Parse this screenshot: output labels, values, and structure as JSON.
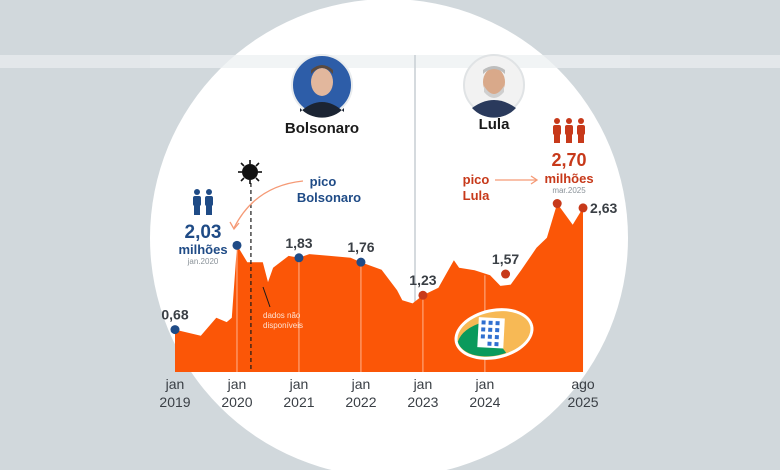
{
  "chart_data": {
    "type": "area",
    "title": "",
    "xlabel": "",
    "ylabel": "milhões",
    "ylim": [
      0,
      2.8
    ],
    "x_start": "2019-01",
    "points": [
      {
        "month": 0,
        "value": 0.68
      },
      {
        "month": 5,
        "value": 0.58
      },
      {
        "month": 8,
        "value": 0.87
      },
      {
        "month": 10,
        "value": 0.8
      },
      {
        "month": 11,
        "value": 0.87
      },
      {
        "month": 12,
        "value": 2.03
      },
      {
        "month": 14,
        "value": 1.76
      },
      {
        "month": 17,
        "value": 1.76
      },
      {
        "month": 18,
        "value": 1.44
      },
      {
        "month": 19,
        "value": 1.67
      },
      {
        "month": 22,
        "value": 1.86
      },
      {
        "month": 24,
        "value": 1.83
      },
      {
        "month": 26,
        "value": 1.89
      },
      {
        "month": 30,
        "value": 1.86
      },
      {
        "month": 34,
        "value": 1.83
      },
      {
        "month": 36,
        "value": 1.76
      },
      {
        "month": 40,
        "value": 1.64
      },
      {
        "month": 43,
        "value": 1.31
      },
      {
        "month": 44,
        "value": 1.15
      },
      {
        "month": 46,
        "value": 1.1
      },
      {
        "month": 48,
        "value": 1.23
      },
      {
        "month": 51,
        "value": 1.35
      },
      {
        "month": 54,
        "value": 1.79
      },
      {
        "month": 55,
        "value": 1.67
      },
      {
        "month": 58,
        "value": 1.63
      },
      {
        "month": 61,
        "value": 1.55
      },
      {
        "month": 63,
        "value": 1.38
      },
      {
        "month": 65,
        "value": 1.4
      },
      {
        "month": 67,
        "value": 1.63
      },
      {
        "month": 70,
        "value": 1.99
      },
      {
        "month": 72,
        "value": 2.15
      },
      {
        "month": 74,
        "value": 2.7
      },
      {
        "month": 77,
        "value": 2.36
      },
      {
        "month": 79,
        "value": 2.63
      }
    ],
    "markers": [
      {
        "month": 0,
        "value": 0.68,
        "label": "0,68",
        "color": "#1f4b86"
      },
      {
        "month": 12,
        "value": 2.03,
        "label": "",
        "color": "#1f4b86"
      },
      {
        "month": 24,
        "value": 1.83,
        "label": "1,83",
        "color": "#1f4b86"
      },
      {
        "month": 36,
        "value": 1.76,
        "label": "1,76",
        "color": "#1f4b86"
      },
      {
        "month": 48,
        "value": 1.23,
        "label": "1,23",
        "color": "#c7391a"
      },
      {
        "month": 64,
        "value": 1.57,
        "label": "1,57",
        "color": "#c7391a"
      },
      {
        "month": 74,
        "value": 2.7,
        "label": "",
        "color": "#c7391a"
      },
      {
        "month": 79,
        "value": 2.63,
        "label": "2,63",
        "color": "#c7391a"
      }
    ],
    "x_ticks": [
      {
        "month": 0,
        "top": "jan",
        "bottom": "2019"
      },
      {
        "month": 12,
        "top": "jan",
        "bottom": "2020"
      },
      {
        "month": 24,
        "top": "jan",
        "bottom": "2021"
      },
      {
        "month": 36,
        "top": "jan",
        "bottom": "2022"
      },
      {
        "month": 48,
        "top": "jan",
        "bottom": "2023"
      },
      {
        "month": 60,
        "top": "jan",
        "bottom": "2024"
      },
      {
        "month": 79,
        "top": "ago",
        "bottom": "2025"
      }
    ],
    "gridlines_months": [
      12,
      24,
      36,
      48,
      60
    ],
    "covid_month": 14.7
  },
  "colors": {
    "area": "#fb5607",
    "bolsonaro": "#1f4b86",
    "lula": "#c7391a",
    "arrow": "#f59a76"
  },
  "presidents": {
    "bolsonaro": "Bolsonaro",
    "lula": "Lula"
  },
  "annotations": {
    "bolsonaro_peak": {
      "title1": "pico",
      "title2": "Bolsonaro",
      "value": "2,03",
      "unit": "milhões",
      "date": "jan.2020"
    },
    "lula_peak": {
      "title1": "pico",
      "title2": "Lula",
      "value": "2,70",
      "unit": "milhões",
      "date": "mar.2025"
    },
    "missing_data1": "dados não",
    "missing_data2": "disponíveis"
  }
}
